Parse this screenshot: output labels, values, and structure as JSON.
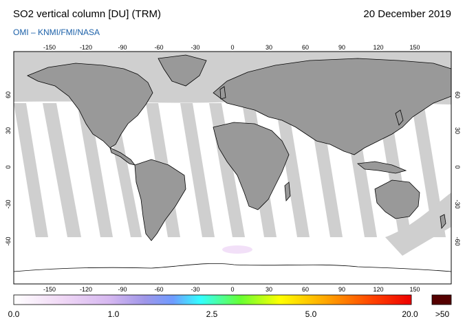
{
  "header": {
    "title": "SO2 vertical column [DU] (TRM)",
    "date": "20 December 2019",
    "credit": "OMI  –  KNMI/FMI/NASA"
  },
  "map": {
    "lon_ticks": [
      "-150",
      "-120",
      "-90",
      "-60",
      "-30",
      "0",
      "30",
      "60",
      "90",
      "120",
      "150"
    ],
    "lat_ticks": [
      "60",
      "30",
      "0",
      "-30",
      "-60"
    ],
    "colors": {
      "land": "#999999",
      "missing_orbit_gap": "#cfcfcf",
      "background": "#ffffff",
      "coastline": "#000000"
    }
  },
  "colorbar": {
    "labels": [
      "0.0",
      "1.0",
      "2.5",
      "5.0",
      "20.0"
    ],
    "overflow_label": ">50",
    "overflow_color": "#550000",
    "gradient_colors": [
      "#ffffff",
      "#e8c8f0",
      "#b6a0e8",
      "#6fa0ff",
      "#33ffff",
      "#66ff33",
      "#ffff00",
      "#ffaa00",
      "#ff4400",
      "#ee0000"
    ]
  }
}
